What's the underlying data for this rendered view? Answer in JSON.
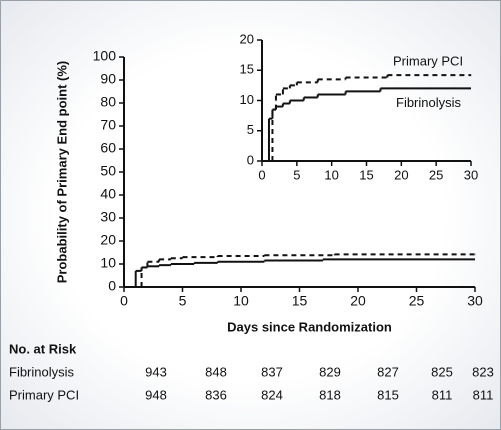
{
  "chart_data": [
    {
      "type": "step",
      "y_label": "Probability of Primary End point (%)",
      "x_label": "Days since Randomization",
      "xlim": [
        0,
        30
      ],
      "ylim": [
        0,
        100
      ],
      "xticks": [
        0,
        5,
        10,
        15,
        20,
        25,
        30
      ],
      "yticks": [
        0,
        10,
        20,
        30,
        40,
        50,
        60,
        70,
        80,
        90,
        100
      ],
      "series": [
        {
          "color": "#111111",
          "dash": false,
          "x": [
            0,
            1,
            1.5,
            2,
            3,
            4,
            6,
            8,
            12,
            17,
            30
          ],
          "values": [
            0,
            7,
            8.5,
            9,
            9.5,
            10,
            10.5,
            11,
            11.5,
            12,
            12
          ]
        },
        {
          "color": "#111111",
          "dash": true,
          "x": [
            0,
            1.5,
            2,
            3,
            4,
            5,
            8,
            12,
            18,
            30
          ],
          "values": [
            0,
            8.5,
            11,
            12,
            12.5,
            13,
            13.5,
            13.8,
            14.2,
            14.2
          ]
        }
      ]
    },
    {
      "type": "step",
      "xlim": [
        0,
        30
      ],
      "ylim": [
        0,
        20
      ],
      "xticks": [
        0,
        5,
        10,
        15,
        20,
        25,
        30
      ],
      "yticks": [
        0,
        5,
        10,
        15,
        20
      ],
      "series": [
        {
          "name": "Fibrinolysis",
          "color": "#111111",
          "dash": false,
          "x": [
            0,
            1,
            1.5,
            2,
            3,
            4,
            6,
            8,
            12,
            17,
            30
          ],
          "values": [
            0,
            7,
            8.5,
            9,
            9.5,
            10,
            10.5,
            11,
            11.5,
            12,
            12
          ]
        },
        {
          "name": "Primary PCI",
          "color": "#111111",
          "dash": true,
          "x": [
            0,
            1.5,
            2,
            3,
            4,
            5,
            8,
            12,
            18,
            30
          ],
          "values": [
            0,
            8.5,
            11,
            12,
            12.5,
            13,
            13.5,
            13.8,
            14.2,
            14.2
          ]
        }
      ]
    }
  ],
  "risk_table": {
    "title": "No. at Risk",
    "rows": [
      {
        "label": "Fibrinolysis",
        "values": [
          "943",
          "848",
          "837",
          "829",
          "827",
          "825",
          "823"
        ]
      },
      {
        "label": "Primary PCI",
        "values": [
          "948",
          "836",
          "824",
          "818",
          "815",
          "811",
          "811"
        ]
      }
    ]
  }
}
